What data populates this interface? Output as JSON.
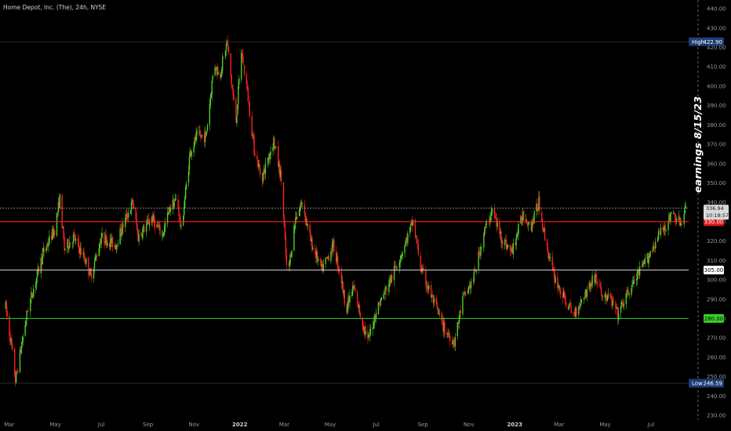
{
  "header": {
    "symbol_line": "Home Depot, Inc. (The), 24h, NYSE"
  },
  "side_annotation": "earnings 8/15/23",
  "markers": {
    "high": {
      "label": "High",
      "value": "422.90"
    },
    "low": {
      "label": "Low",
      "value": "246.59"
    },
    "current": {
      "value": "336.94",
      "countdown": "10:18:57"
    }
  },
  "colors": {
    "background": "#000000",
    "up": "#4dd22b",
    "down": "#ff2020",
    "level_red": "#ff1e1e",
    "level_white": "#d8d8d8",
    "level_green": "#37d22e",
    "highlow_badge": "#1e3c73",
    "grid_dashed": "#2a2e39"
  },
  "chart_data": {
    "type": "candlestick",
    "ylim": [
      229,
      444
    ],
    "x_range": [
      "2021-03-01",
      "2023-08-20"
    ],
    "y_ticks": [
      230,
      240,
      250,
      260,
      270,
      280,
      290,
      300,
      310,
      320,
      330,
      340,
      350,
      360,
      370,
      380,
      390,
      400,
      410,
      420,
      430,
      440
    ],
    "x_ticks": [
      {
        "date": "2021-03-01",
        "label": "Mar"
      },
      {
        "date": "2021-05-01",
        "label": "May"
      },
      {
        "date": "2021-07-01",
        "label": "Jul"
      },
      {
        "date": "2021-09-01",
        "label": "Sep"
      },
      {
        "date": "2021-11-01",
        "label": "Nov"
      },
      {
        "date": "2022-01-01",
        "label": "2022"
      },
      {
        "date": "2022-03-01",
        "label": "Mar"
      },
      {
        "date": "2022-05-01",
        "label": "May"
      },
      {
        "date": "2022-07-01",
        "label": "Jul"
      },
      {
        "date": "2022-09-01",
        "label": "Sep"
      },
      {
        "date": "2022-11-01",
        "label": "Nov"
      },
      {
        "date": "2023-01-01",
        "label": "2023"
      },
      {
        "date": "2023-03-01",
        "label": "Mar"
      },
      {
        "date": "2023-05-01",
        "label": "May"
      },
      {
        "date": "2023-07-01",
        "label": "Jul"
      }
    ],
    "horizontal_levels": [
      {
        "value": 422.9,
        "label": "422.90",
        "kind": "high"
      },
      {
        "value": 336.94,
        "label": "336.94",
        "kind": "current"
      },
      {
        "value": 330,
        "label": "330.00",
        "kind": "red"
      },
      {
        "value": 305,
        "label": "305.00",
        "kind": "white"
      },
      {
        "value": 280,
        "label": "280.00",
        "kind": "green"
      },
      {
        "value": 246.59,
        "label": "246.59",
        "kind": "low"
      }
    ],
    "price_path": [
      [
        "2021-02-24",
        286
      ],
      [
        "2021-03-04",
        265
      ],
      [
        "2021-03-09",
        248
      ],
      [
        "2021-03-25",
        284
      ],
      [
        "2021-04-15",
        314
      ],
      [
        "2021-04-30",
        326
      ],
      [
        "2021-05-07",
        342
      ],
      [
        "2021-05-13",
        316
      ],
      [
        "2021-05-25",
        322
      ],
      [
        "2021-06-10",
        310
      ],
      [
        "2021-06-17",
        302
      ],
      [
        "2021-07-01",
        322
      ],
      [
        "2021-07-20",
        318
      ],
      [
        "2021-08-04",
        333
      ],
      [
        "2021-08-12",
        340
      ],
      [
        "2021-08-19",
        322
      ],
      [
        "2021-09-06",
        332
      ],
      [
        "2021-09-20",
        323
      ],
      [
        "2021-10-01",
        338
      ],
      [
        "2021-10-10",
        342
      ],
      [
        "2021-10-15",
        325
      ],
      [
        "2021-10-27",
        366
      ],
      [
        "2021-11-05",
        374
      ],
      [
        "2021-11-17",
        374
      ],
      [
        "2021-11-28",
        412
      ],
      [
        "2021-12-05",
        405
      ],
      [
        "2021-12-15",
        423
      ],
      [
        "2021-12-22",
        398
      ],
      [
        "2021-12-27",
        382
      ],
      [
        "2022-01-03",
        418
      ],
      [
        "2022-01-10",
        400
      ],
      [
        "2022-01-20",
        368
      ],
      [
        "2022-01-30",
        352
      ],
      [
        "2022-02-15",
        372
      ],
      [
        "2022-02-25",
        352
      ],
      [
        "2022-03-05",
        300
      ],
      [
        "2022-03-16",
        332
      ],
      [
        "2022-03-25",
        340
      ],
      [
        "2022-04-05",
        320
      ],
      [
        "2022-04-20",
        305
      ],
      [
        "2022-05-05",
        318
      ],
      [
        "2022-05-15",
        302
      ],
      [
        "2022-05-22",
        285
      ],
      [
        "2022-06-01",
        296
      ],
      [
        "2022-06-10",
        282
      ],
      [
        "2022-06-20",
        268
      ],
      [
        "2022-07-01",
        284
      ],
      [
        "2022-07-20",
        300
      ],
      [
        "2022-08-05",
        315
      ],
      [
        "2022-08-19",
        330
      ],
      [
        "2022-08-30",
        305
      ],
      [
        "2022-09-12",
        292
      ],
      [
        "2022-09-30",
        274
      ],
      [
        "2022-10-13",
        268
      ],
      [
        "2022-10-24",
        290
      ],
      [
        "2022-11-07",
        300
      ],
      [
        "2022-11-21",
        324
      ],
      [
        "2022-12-02",
        336
      ],
      [
        "2022-12-14",
        322
      ],
      [
        "2022-12-28",
        314
      ],
      [
        "2023-01-12",
        334
      ],
      [
        "2023-01-23",
        328
      ],
      [
        "2023-02-02",
        340
      ],
      [
        "2023-02-10",
        322
      ],
      [
        "2023-02-21",
        303
      ],
      [
        "2023-03-08",
        290
      ],
      [
        "2023-03-20",
        282
      ],
      [
        "2023-04-03",
        292
      ],
      [
        "2023-04-18",
        302
      ],
      [
        "2023-04-27",
        292
      ],
      [
        "2023-05-08",
        290
      ],
      [
        "2023-05-18",
        282
      ],
      [
        "2023-05-30",
        292
      ],
      [
        "2023-06-10",
        300
      ],
      [
        "2023-06-25",
        310
      ],
      [
        "2023-07-10",
        322
      ],
      [
        "2023-07-30",
        334
      ],
      [
        "2023-08-11",
        328
      ],
      [
        "2023-08-16",
        337
      ]
    ]
  }
}
